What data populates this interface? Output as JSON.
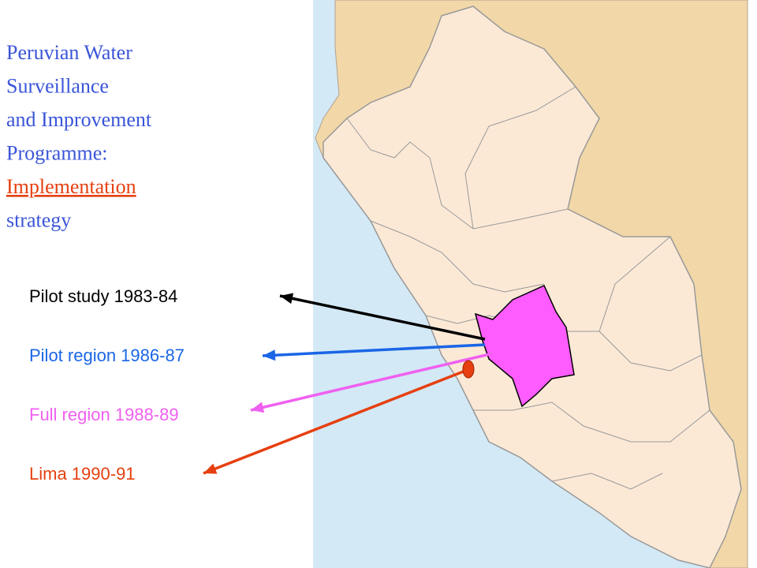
{
  "title": {
    "lines": [
      "Peruvian Water",
      "Surveillance",
      "and Improvement",
      "Programme:"
    ],
    "highlight": "Implementation",
    "last": "strategy"
  },
  "stages": [
    {
      "label": "Pilot study 1983-84",
      "color": "#000000"
    },
    {
      "label": "Pilot region 1986-87",
      "color": "#1a66e6"
    },
    {
      "label": "Full region 1988-89",
      "color": "#f060f0"
    },
    {
      "label": "Lima 1990-91",
      "color": "#e64010"
    }
  ]
}
